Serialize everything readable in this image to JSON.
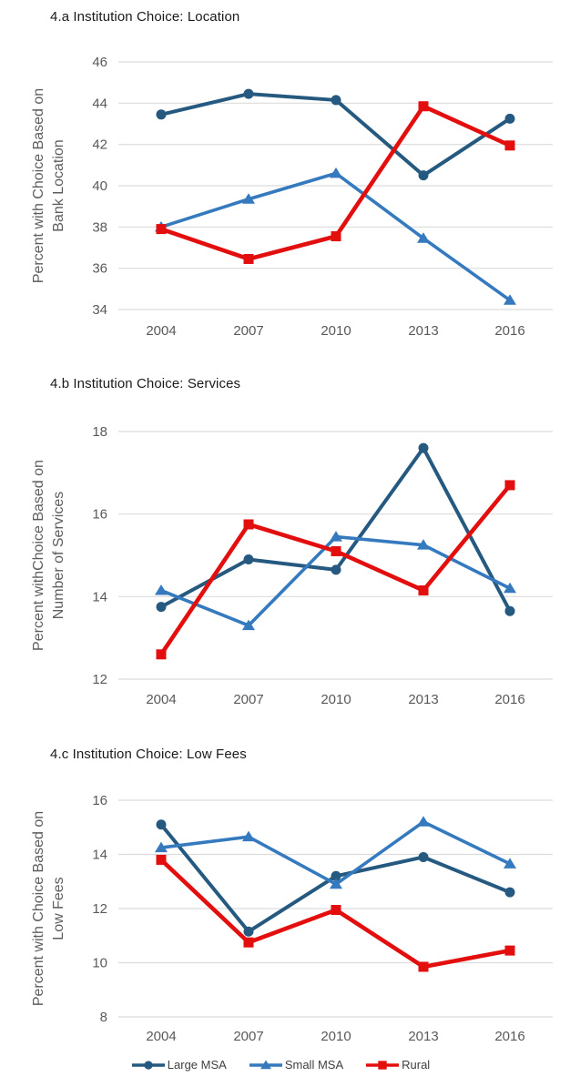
{
  "page": {
    "background": "#ffffff",
    "axis_text_color": "#595959",
    "title_color": "#1a1a1a",
    "gridline_color": "#dcdcdc"
  },
  "legend": {
    "items": [
      {
        "label": "Large MSA",
        "marker": "circle",
        "color": "#25597F"
      },
      {
        "label": "Small MSA",
        "marker": "triangle",
        "color": "#3579BE"
      },
      {
        "label": "Rural",
        "marker": "square",
        "color": "#E30E0E"
      }
    ],
    "position": "bottom"
  },
  "chart_data": [
    {
      "type": "line",
      "title": "4.a Institution Choice: Location",
      "xlabel": "",
      "ylabel": "Percent with Choice Based on Bank Location",
      "ylabel_lines": [
        "Percent with Choice Based on",
        "Bank Location"
      ],
      "categories": [
        "2004",
        "2007",
        "2010",
        "2013",
        "2016"
      ],
      "ylim": [
        34,
        46
      ],
      "yticks": [
        34,
        36,
        38,
        40,
        42,
        44,
        46
      ],
      "grid": true,
      "legend_position": "none",
      "series": [
        {
          "name": "Large MSA",
          "marker": "circle",
          "color": "#25597F",
          "values": [
            43.45,
            44.45,
            44.15,
            40.5,
            43.25
          ]
        },
        {
          "name": "Small MSA",
          "marker": "triangle",
          "color": "#3579BE",
          "values": [
            38.0,
            39.35,
            40.6,
            37.45,
            34.45
          ]
        },
        {
          "name": "Rural",
          "marker": "square",
          "color": "#E30E0E",
          "values": [
            37.9,
            36.45,
            37.55,
            43.85,
            41.95
          ]
        }
      ]
    },
    {
      "type": "line",
      "title": "4.b Institution Choice: Services",
      "xlabel": "",
      "ylabel": "Percent withChoice Based on Number of Services",
      "ylabel_lines": [
        "Percent withChoice Based on",
        "Number of Services"
      ],
      "categories": [
        "2004",
        "2007",
        "2010",
        "2013",
        "2016"
      ],
      "ylim": [
        12,
        18
      ],
      "yticks": [
        12,
        14,
        16,
        18
      ],
      "grid": true,
      "legend_position": "none",
      "series": [
        {
          "name": "Large MSA",
          "marker": "circle",
          "color": "#25597F",
          "values": [
            13.75,
            14.9,
            14.65,
            17.6,
            13.65
          ]
        },
        {
          "name": "Small MSA",
          "marker": "triangle",
          "color": "#3579BE",
          "values": [
            14.15,
            13.3,
            15.45,
            15.25,
            14.2
          ]
        },
        {
          "name": "Rural",
          "marker": "square",
          "color": "#E30E0E",
          "values": [
            12.6,
            15.75,
            15.1,
            14.15,
            16.7
          ]
        }
      ]
    },
    {
      "type": "line",
      "title": "4.c Institution Choice: Low Fees",
      "xlabel": "",
      "ylabel": "Percent with Choice Based on Low Fees",
      "ylabel_lines": [
        "Percent with Choice Based on",
        "Low Fees"
      ],
      "categories": [
        "2004",
        "2007",
        "2010",
        "2013",
        "2016"
      ],
      "ylim": [
        8,
        16
      ],
      "yticks": [
        8,
        10,
        12,
        14,
        16
      ],
      "grid": true,
      "legend_position": "bottom",
      "series": [
        {
          "name": "Large MSA",
          "marker": "circle",
          "color": "#25597F",
          "values": [
            15.1,
            11.15,
            13.2,
            13.9,
            12.6
          ]
        },
        {
          "name": "Small MSA",
          "marker": "triangle",
          "color": "#3579BE",
          "values": [
            14.25,
            14.65,
            12.9,
            15.2,
            13.65
          ]
        },
        {
          "name": "Rural",
          "marker": "square",
          "color": "#E30E0E",
          "values": [
            13.8,
            10.75,
            11.95,
            9.85,
            10.45
          ]
        }
      ]
    }
  ]
}
